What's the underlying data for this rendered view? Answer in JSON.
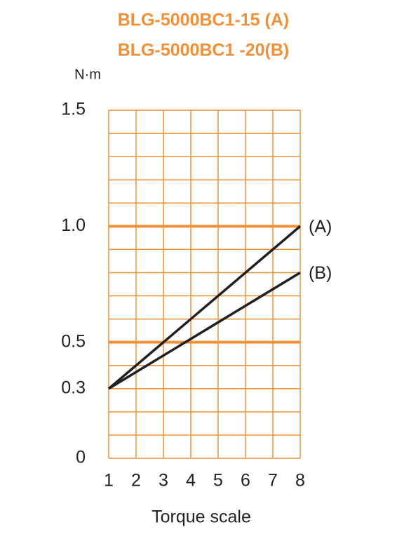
{
  "chart_data": {
    "type": "line",
    "title": "BLG-5000BC1-15 (A)",
    "subtitle": "BLG-5000BC1 -20(B)",
    "y_label": "N·m",
    "x_label": "Torque scale",
    "x": [
      1,
      8
    ],
    "series": [
      {
        "name": "(A)",
        "color": "#231f20",
        "values": [
          0.3,
          1
        ]
      },
      {
        "name": "(B)",
        "color": "#231f20",
        "values": [
          0.3,
          0.8
        ]
      }
    ],
    "xlim": [
      1,
      8
    ],
    "xticks": [
      1,
      2,
      3,
      4,
      5,
      6,
      7,
      8
    ],
    "ylim": [
      0,
      1.5
    ],
    "yticks": [
      0,
      0.3,
      0.5,
      {
        "value": 1,
        "label": "1.0"
      },
      1.5
    ],
    "ygrid": [
      0,
      0.1,
      0.2,
      0.3,
      0.4,
      0.5,
      0.6,
      0.7,
      0.8,
      0.9,
      1,
      1.1,
      1.2,
      1.3,
      1.4,
      1.5
    ],
    "emphasized_grid": [
      0.5,
      1
    ],
    "grid_color": "#f0913a"
  }
}
